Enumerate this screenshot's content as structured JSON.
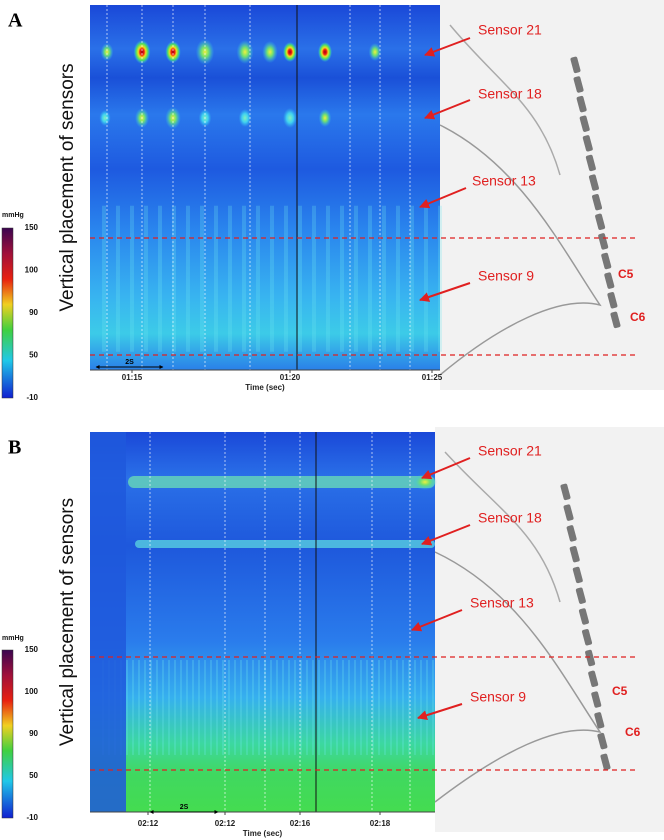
{
  "panels": [
    {
      "label": "A",
      "y_axis_label": "Vertical placement of sensors",
      "colorbar": {
        "unit": "mmHg",
        "ticks": [
          150,
          100,
          90,
          50,
          -10
        ]
      },
      "time_ticks": [
        "01:15",
        "01:20",
        "01:25"
      ],
      "x_axis_label": "Time (sec)",
      "scale_bar": "2S",
      "annotations": [
        "Sensor 21",
        "Sensor 18",
        "Sensor 13",
        "Sensor 9"
      ],
      "vertebrae": [
        "C5",
        "C6"
      ]
    },
    {
      "label": "B",
      "y_axis_label": "Vertical placement of sensors",
      "colorbar": {
        "unit": "mmHg",
        "ticks": [
          150,
          100,
          90,
          50,
          -10
        ]
      },
      "time_ticks": [
        "02:12",
        "02:12",
        "02:16",
        "02:18"
      ],
      "x_axis_label": "Time (sec)",
      "scale_bar": "2S",
      "annotations": [
        "Sensor 21",
        "Sensor 18",
        "Sensor 13",
        "Sensor 9"
      ],
      "vertebrae": [
        "C5",
        "C6"
      ]
    }
  ]
}
